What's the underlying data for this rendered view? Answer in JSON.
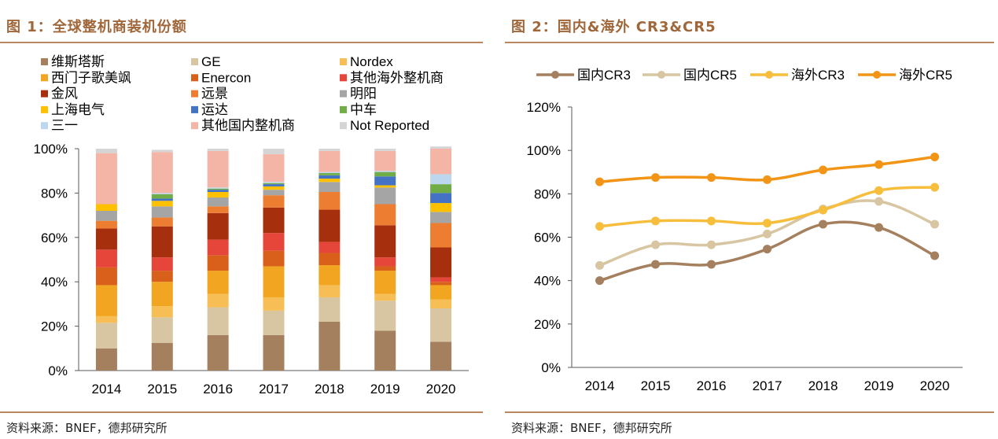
{
  "charts": [
    {
      "title": "图 1：全球整机商装机份额",
      "source": "资料来源：BNEF，德邦研究所"
    },
    {
      "title": "图 2：国内&海外 CR3&CR5",
      "source": "资料来源：BNEF，德邦研究所"
    }
  ],
  "chart_data": [
    {
      "type": "bar",
      "stacked": true,
      "title": "图 1：全球整机商装机份额",
      "categories": [
        "2014",
        "2015",
        "2016",
        "2017",
        "2018",
        "2019",
        "2020"
      ],
      "ylim": [
        0,
        100
      ],
      "yticks": [
        "0%",
        "20%",
        "40%",
        "60%",
        "80%",
        "100%"
      ],
      "series": [
        {
          "name": "维斯塔斯",
          "color": "#A5805E",
          "values": [
            10,
            12.5,
            16,
            16,
            22,
            18,
            13
          ]
        },
        {
          "name": "GE",
          "color": "#D8C5A2",
          "values": [
            11.5,
            11.5,
            12.5,
            11,
            11,
            13.5,
            15
          ]
        },
        {
          "name": "Nordex",
          "color": "#F6BE54",
          "values": [
            3,
            5,
            6,
            6,
            5.5,
            3,
            4
          ]
        },
        {
          "name": "西门子歌美飒",
          "color": "#F2A520",
          "values": [
            14,
            11,
            10.5,
            14,
            9,
            10.5,
            6.5
          ]
        },
        {
          "name": "Enercon",
          "color": "#D9601A",
          "values": [
            8,
            5,
            7,
            7,
            5.5,
            2,
            1.5
          ]
        },
        {
          "name": "其他海外整机商",
          "color": "#E6453A",
          "values": [
            8,
            6,
            7,
            8,
            5,
            4,
            2
          ]
        },
        {
          "name": "金风",
          "color": "#A6300E",
          "values": [
            9.5,
            14,
            12,
            11.5,
            14.5,
            14.5,
            13.5
          ]
        },
        {
          "name": "远景",
          "color": "#ED7D31",
          "values": [
            3.5,
            4,
            3,
            5.5,
            8,
            9.5,
            11
          ]
        },
        {
          "name": "明阳",
          "color": "#A5A5A5",
          "values": [
            4.5,
            5,
            4,
            2.5,
            4.5,
            7.5,
            5
          ]
        },
        {
          "name": "上海电气",
          "color": "#FFC000",
          "values": [
            3,
            2.5,
            2.5,
            1.5,
            1.5,
            1,
            4
          ]
        },
        {
          "name": "运达",
          "color": "#4472C4",
          "values": [
            0,
            1,
            1,
            1,
            1.5,
            4,
            4.5
          ]
        },
        {
          "name": "中车",
          "color": "#70AD47",
          "values": [
            0,
            2,
            0.5,
            0.5,
            1,
            2,
            4
          ]
        },
        {
          "name": "三一",
          "color": "#BDD7EE",
          "values": [
            0,
            0.5,
            0.5,
            0.5,
            0.5,
            0.5,
            4.5
          ]
        },
        {
          "name": "其他国内整机商",
          "color": "#F4B5A7",
          "values": [
            23,
            18.5,
            16.5,
            12.5,
            9.5,
            9,
            11.5
          ]
        },
        {
          "name": "Not Reported",
          "color": "#D5D5D5",
          "values": [
            2,
            1,
            1,
            2.5,
            1,
            1,
            1
          ]
        }
      ]
    },
    {
      "type": "line",
      "title": "图 2：国内&海外 CR3&CR5",
      "categories": [
        "2014",
        "2015",
        "2016",
        "2017",
        "2018",
        "2019",
        "2020"
      ],
      "ylim": [
        0,
        120
      ],
      "yticks": [
        "0%",
        "20%",
        "40%",
        "60%",
        "80%",
        "100%",
        "120%"
      ],
      "series": [
        {
          "name": "国内CR3",
          "color": "#A5805E",
          "values": [
            40,
            47.5,
            47.5,
            54.5,
            66,
            64.5,
            51.5
          ]
        },
        {
          "name": "国内CR5",
          "color": "#D8C5A2",
          "values": [
            47,
            56.5,
            56.5,
            61.5,
            73,
            76.5,
            66
          ]
        },
        {
          "name": "海外CR3",
          "color": "#F6BE3C",
          "values": [
            65,
            67.5,
            67.5,
            66.5,
            72.5,
            81.5,
            83
          ]
        },
        {
          "name": "海外CR5",
          "color": "#F29516",
          "values": [
            85.5,
            87.5,
            87.5,
            86.5,
            91,
            93.5,
            97
          ]
        }
      ]
    }
  ]
}
